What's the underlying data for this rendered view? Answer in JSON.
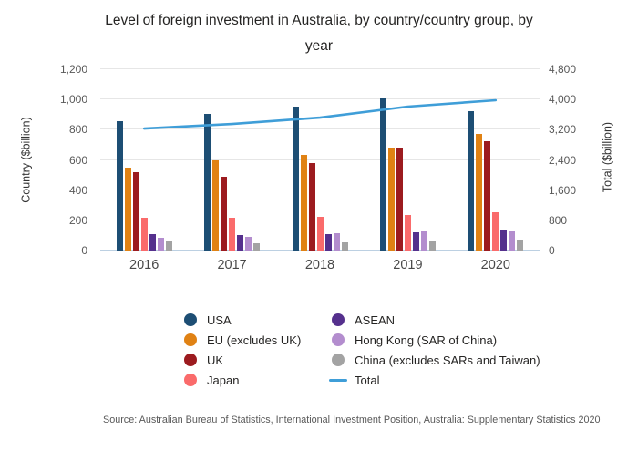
{
  "title": "Level of foreign investment in Australia, by country/country group, by year",
  "source": "Source: Australian Bureau of Statistics, International Investment Position, Australia: Supplementary Statistics 2020",
  "axes": {
    "left": {
      "label": "Country ($billion)",
      "ticks": [
        "0",
        "200",
        "400",
        "600",
        "800",
        "1,000",
        "1,200"
      ],
      "max": 1200
    },
    "right": {
      "label": "Total ($billion)",
      "ticks": [
        "0",
        "800",
        "1,600",
        "2,400",
        "3,200",
        "4,000",
        "4,800"
      ],
      "max": 4800
    }
  },
  "chart_data": {
    "type": "bar",
    "title": "Level of foreign investment in Australia, by country/country group, by year",
    "categories": [
      "2016",
      "2017",
      "2018",
      "2019",
      "2020"
    ],
    "series": [
      {
        "name": "USA",
        "color": "#1d4e74",
        "values": [
          855,
          905,
          950,
          1010,
          920
        ]
      },
      {
        "name": "EU (excludes UK)",
        "color": "#e08214",
        "values": [
          550,
          600,
          635,
          680,
          770
        ]
      },
      {
        "name": "UK",
        "color": "#9c1b1f",
        "values": [
          520,
          490,
          580,
          680,
          725
        ]
      },
      {
        "name": "Japan",
        "color": "#fa6b6b",
        "values": [
          215,
          220,
          225,
          235,
          255
        ]
      },
      {
        "name": "ASEAN",
        "color": "#55308d",
        "values": [
          110,
          105,
          110,
          120,
          140
        ]
      },
      {
        "name": "Hong Kong (SAR of China)",
        "color": "#b38dce",
        "values": [
          85,
          90,
          115,
          130,
          130
        ]
      },
      {
        "name": "China (excludes SARs and Taiwan)",
        "color": "#a3a3a3",
        "values": [
          65,
          50,
          55,
          65,
          70
        ]
      }
    ],
    "line_series": {
      "name": "Total",
      "axis": "right",
      "color": "#3f9ed8",
      "values": [
        3230,
        3350,
        3520,
        3810,
        3980
      ]
    },
    "xlabel": "",
    "ylabel_left": "Country ($billion)",
    "ylabel_right": "Total ($billion)",
    "ylim_left": [
      0,
      1200
    ],
    "ylim_right": [
      0,
      4800
    ],
    "grid": true,
    "legend_position": "bottom"
  },
  "legend": {
    "columns": [
      [
        {
          "label": "USA",
          "type": "circle",
          "color": "#1d4e74"
        },
        {
          "label": "EU (excludes UK)",
          "type": "circle",
          "color": "#e08214"
        },
        {
          "label": "UK",
          "type": "circle",
          "color": "#9c1b1f"
        },
        {
          "label": "Japan",
          "type": "circle",
          "color": "#fa6b6b"
        }
      ],
      [
        {
          "label": "ASEAN",
          "type": "circle",
          "color": "#55308d"
        },
        {
          "label": "Hong Kong (SAR of China)",
          "type": "circle",
          "color": "#b38dce"
        },
        {
          "label": "China (excludes SARs and Taiwan)",
          "type": "circle",
          "color": "#a3a3a3"
        },
        {
          "label": "Total",
          "type": "line",
          "color": "#3f9ed8"
        }
      ]
    ]
  }
}
